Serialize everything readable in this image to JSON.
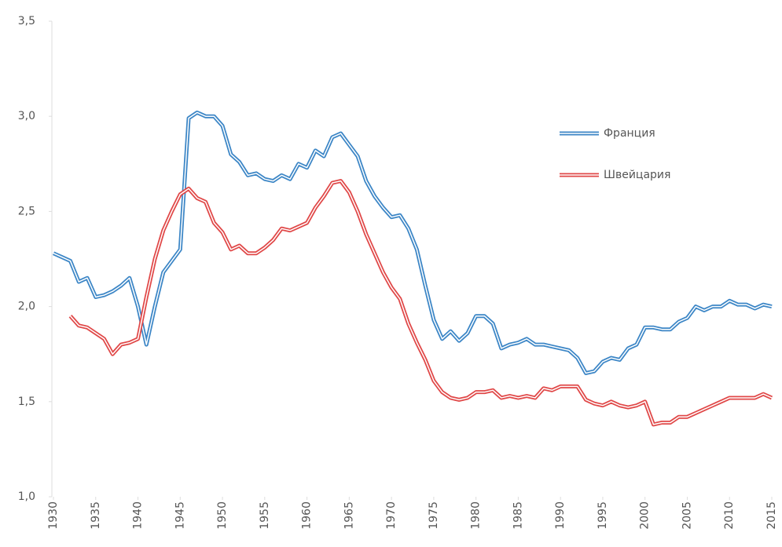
{
  "chart_data": {
    "type": "line",
    "x": [
      1930,
      1931,
      1932,
      1933,
      1934,
      1935,
      1936,
      1937,
      1938,
      1939,
      1940,
      1941,
      1942,
      1943,
      1944,
      1945,
      1946,
      1947,
      1948,
      1949,
      1950,
      1951,
      1952,
      1953,
      1954,
      1955,
      1956,
      1957,
      1958,
      1959,
      1960,
      1961,
      1962,
      1963,
      1964,
      1965,
      1966,
      1967,
      1968,
      1969,
      1970,
      1971,
      1972,
      1973,
      1974,
      1975,
      1976,
      1977,
      1978,
      1979,
      1980,
      1981,
      1982,
      1983,
      1984,
      1985,
      1986,
      1987,
      1988,
      1989,
      1990,
      1991,
      1992,
      1993,
      1994,
      1995,
      1996,
      1997,
      1998,
      1999,
      2000,
      2001,
      2002,
      2003,
      2004,
      2005,
      2006,
      2007,
      2008,
      2009,
      2010,
      2011,
      2012,
      2013,
      2014,
      2015
    ],
    "series": [
      {
        "name": "Франция",
        "color": "#3c86c6",
        "values": [
          2.28,
          2.26,
          2.24,
          2.13,
          2.15,
          2.05,
          2.06,
          2.08,
          2.11,
          2.15,
          2.0,
          1.8,
          2.0,
          2.18,
          2.24,
          2.3,
          2.99,
          3.02,
          3.0,
          3.0,
          2.95,
          2.8,
          2.76,
          2.69,
          2.7,
          2.67,
          2.66,
          2.69,
          2.67,
          2.75,
          2.73,
          2.82,
          2.79,
          2.89,
          2.91,
          2.85,
          2.79,
          2.66,
          2.58,
          2.52,
          2.47,
          2.48,
          2.41,
          2.3,
          2.11,
          1.93,
          1.83,
          1.87,
          1.82,
          1.86,
          1.95,
          1.95,
          1.91,
          1.78,
          1.8,
          1.81,
          1.83,
          1.8,
          1.8,
          1.79,
          1.78,
          1.77,
          1.73,
          1.65,
          1.66,
          1.71,
          1.73,
          1.72,
          1.78,
          1.8,
          1.89,
          1.89,
          1.88,
          1.88,
          1.92,
          1.94,
          2.0,
          1.98,
          2.0,
          2.0,
          2.03,
          2.01,
          2.01,
          1.99,
          2.01,
          2.0
        ]
      },
      {
        "name": "Швейцария",
        "color": "#e04848",
        "values": [
          null,
          null,
          1.95,
          1.9,
          1.89,
          1.86,
          1.83,
          1.75,
          1.8,
          1.81,
          1.83,
          2.05,
          2.25,
          2.4,
          2.5,
          2.59,
          2.62,
          2.57,
          2.55,
          2.44,
          2.39,
          2.3,
          2.32,
          2.28,
          2.28,
          2.31,
          2.35,
          2.41,
          2.4,
          2.42,
          2.44,
          2.52,
          2.58,
          2.65,
          2.66,
          2.6,
          2.5,
          2.38,
          2.28,
          2.18,
          2.1,
          2.04,
          1.91,
          1.81,
          1.72,
          1.61,
          1.55,
          1.52,
          1.51,
          1.52,
          1.55,
          1.55,
          1.56,
          1.52,
          1.53,
          1.52,
          1.53,
          1.52,
          1.57,
          1.56,
          1.58,
          1.58,
          1.58,
          1.51,
          1.49,
          1.48,
          1.5,
          1.48,
          1.47,
          1.48,
          1.5,
          1.38,
          1.39,
          1.39,
          1.42,
          1.42,
          1.44,
          1.46,
          1.48,
          1.5,
          1.52,
          1.52,
          1.52,
          1.52,
          1.54,
          1.52
        ]
      }
    ],
    "xlim": [
      1930,
      2015
    ],
    "xticks": [
      1930,
      1935,
      1940,
      1945,
      1950,
      1955,
      1960,
      1965,
      1970,
      1975,
      1980,
      1985,
      1990,
      1995,
      2000,
      2005,
      2010,
      2015
    ],
    "ylim": [
      1.0,
      3.5
    ],
    "yticks": [
      {
        "value": 1.0,
        "label": "1,0"
      },
      {
        "value": 1.5,
        "label": "1,5"
      },
      {
        "value": 2.0,
        "label": "2,0"
      },
      {
        "value": 2.5,
        "label": "2,5"
      },
      {
        "value": 3.0,
        "label": "3,0"
      },
      {
        "value": 3.5,
        "label": "3,5"
      }
    ],
    "grid": false
  }
}
